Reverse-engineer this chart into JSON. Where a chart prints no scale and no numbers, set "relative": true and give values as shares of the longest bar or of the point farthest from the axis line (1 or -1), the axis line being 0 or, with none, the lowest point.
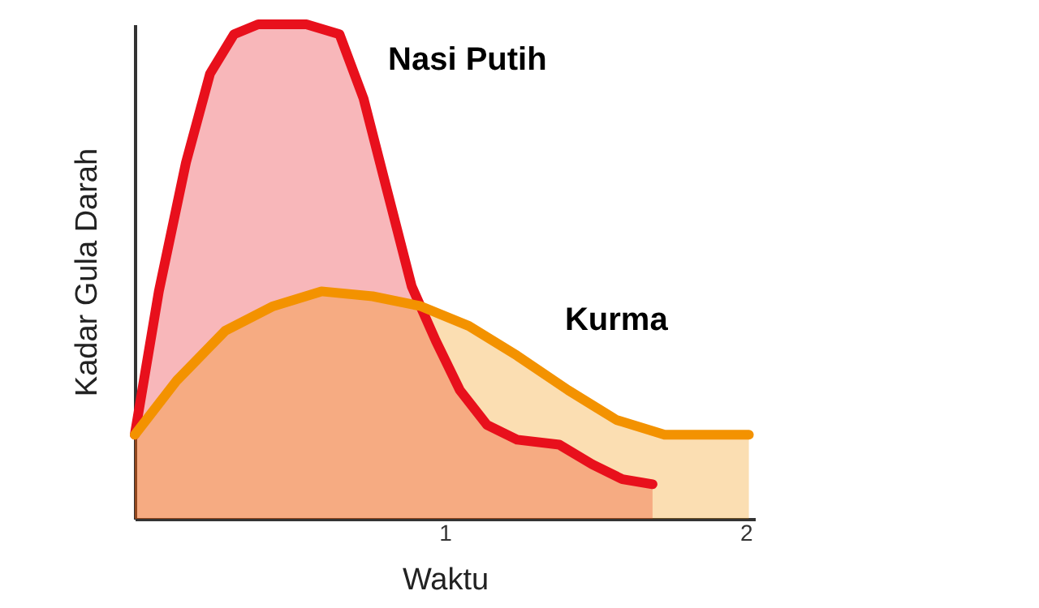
{
  "chart_data": {
    "type": "area",
    "relative": true,
    "xlabel": "Waktu",
    "ylabel": "Kadar Gula Darah",
    "xlim": [
      -0.03,
      2.03
    ],
    "xticks": [
      1,
      2
    ],
    "grid": false,
    "series": [
      {
        "name": "Nasi Putih",
        "color": "#e8101c",
        "x": [
          -0.03,
          0.05,
          0.14,
          0.22,
          0.3,
          0.38,
          0.54,
          0.65,
          0.73,
          0.81,
          0.89,
          0.97,
          1.05,
          1.14,
          1.24,
          1.38,
          1.49,
          1.59,
          1.69
        ],
        "values": [
          0.17,
          0.46,
          0.72,
          0.9,
          0.98,
          1.0,
          1.0,
          0.98,
          0.85,
          0.66,
          0.47,
          0.36,
          0.26,
          0.19,
          0.16,
          0.15,
          0.11,
          0.08,
          0.07
        ]
      },
      {
        "name": "Kurma",
        "color": "#f39200",
        "x": [
          -0.03,
          0.11,
          0.27,
          0.43,
          0.59,
          0.76,
          0.92,
          1.08,
          1.24,
          1.41,
          1.57,
          1.73,
          1.89,
          2.01
        ],
        "values": [
          0.17,
          0.28,
          0.38,
          0.43,
          0.46,
          0.45,
          0.43,
          0.39,
          0.33,
          0.26,
          0.2,
          0.17,
          0.17,
          0.17
        ]
      }
    ]
  }
}
